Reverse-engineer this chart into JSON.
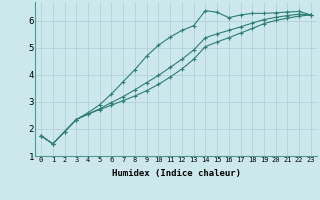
{
  "xlabel": "Humidex (Indice chaleur)",
  "background_color": "#cce8ec",
  "grid_color": "#aacdd4",
  "line_color": "#2d7d78",
  "xlim": [
    -0.5,
    23.5
  ],
  "ylim": [
    1.0,
    6.7
  ],
  "yticks": [
    1,
    2,
    3,
    4,
    5,
    6
  ],
  "xticks": [
    0,
    1,
    2,
    3,
    4,
    5,
    6,
    7,
    8,
    9,
    10,
    11,
    12,
    13,
    14,
    15,
    16,
    17,
    18,
    19,
    20,
    21,
    22,
    23
  ],
  "line1_x": [
    0,
    1,
    2,
    3,
    4,
    5,
    6,
    7,
    8,
    9,
    10,
    11,
    12,
    13,
    14,
    15,
    16,
    17,
    18,
    19,
    20,
    21,
    22,
    23
  ],
  "line1_y": [
    1.75,
    1.45,
    1.9,
    2.35,
    2.6,
    2.9,
    3.3,
    3.75,
    4.2,
    4.7,
    5.1,
    5.4,
    5.65,
    5.82,
    6.38,
    6.32,
    6.12,
    6.22,
    6.28,
    6.28,
    6.3,
    6.33,
    6.35,
    6.22
  ],
  "line2_x": [
    0,
    1,
    2,
    3,
    4,
    5,
    6,
    7,
    8,
    9,
    10,
    11,
    12,
    13,
    14,
    15,
    16,
    17,
    18,
    19,
    20,
    21,
    22,
    23
  ],
  "line2_y": [
    1.75,
    1.45,
    1.9,
    2.35,
    2.55,
    2.75,
    2.98,
    3.2,
    3.45,
    3.72,
    3.98,
    4.28,
    4.58,
    4.92,
    5.38,
    5.52,
    5.65,
    5.78,
    5.92,
    6.05,
    6.13,
    6.2,
    6.25,
    6.22
  ],
  "line3_x": [
    0,
    1,
    2,
    3,
    4,
    5,
    6,
    7,
    8,
    9,
    10,
    11,
    12,
    13,
    14,
    15,
    16,
    17,
    18,
    19,
    20,
    21,
    22,
    23
  ],
  "line3_y": [
    1.75,
    1.45,
    1.9,
    2.35,
    2.55,
    2.72,
    2.88,
    3.05,
    3.22,
    3.42,
    3.65,
    3.92,
    4.22,
    4.58,
    5.05,
    5.22,
    5.38,
    5.55,
    5.72,
    5.9,
    6.02,
    6.1,
    6.18,
    6.22
  ]
}
